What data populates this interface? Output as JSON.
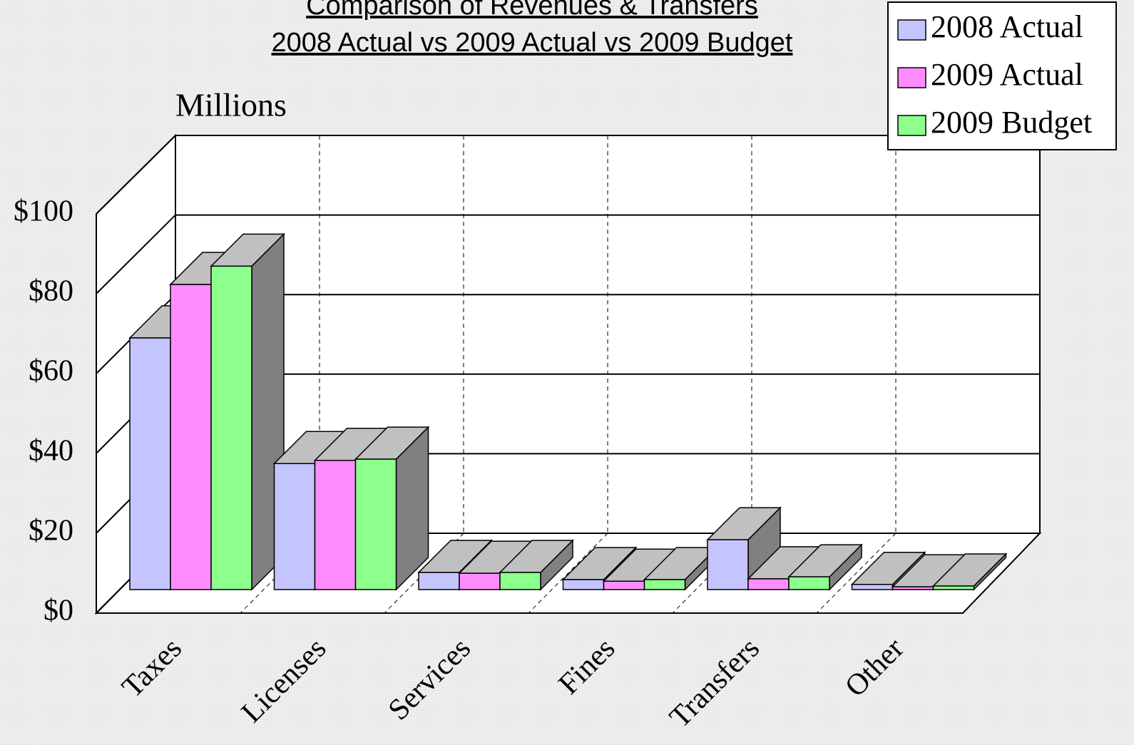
{
  "chart_data": {
    "type": "bar3d",
    "title": "Comparison of Revenues & Transfers",
    "subtitle": "2008 Actual vs 2009 Actual vs 2009 Budget",
    "y_label": "Millions",
    "categories": [
      "Taxes",
      "Licenses",
      "Services",
      "Fines",
      "Transfers",
      "Other"
    ],
    "series": [
      {
        "name": "2008 Actual",
        "color": "#c4c4ff",
        "values": [
          63.1,
          31.6,
          4.3,
          2.5,
          12.5,
          1.3
        ]
      },
      {
        "name": "2009 Actual",
        "color": "#ff8cff",
        "values": [
          76.5,
          32.4,
          4.1,
          2.1,
          2.7,
          0.7
        ]
      },
      {
        "name": "2009 Budget",
        "color": "#8cff8c",
        "values": [
          81.1,
          32.7,
          4.3,
          2.5,
          3.2,
          0.9
        ]
      }
    ],
    "ylim": [
      0,
      100
    ],
    "yticks": [
      {
        "value": 0,
        "label": "$0"
      },
      {
        "value": 20,
        "label": "$20"
      },
      {
        "value": 40,
        "label": "$40"
      },
      {
        "value": 60,
        "label": "$60"
      },
      {
        "value": 80,
        "label": "$80"
      },
      {
        "value": 100,
        "label": "$100"
      }
    ],
    "grid": true,
    "legend": "top-right"
  }
}
